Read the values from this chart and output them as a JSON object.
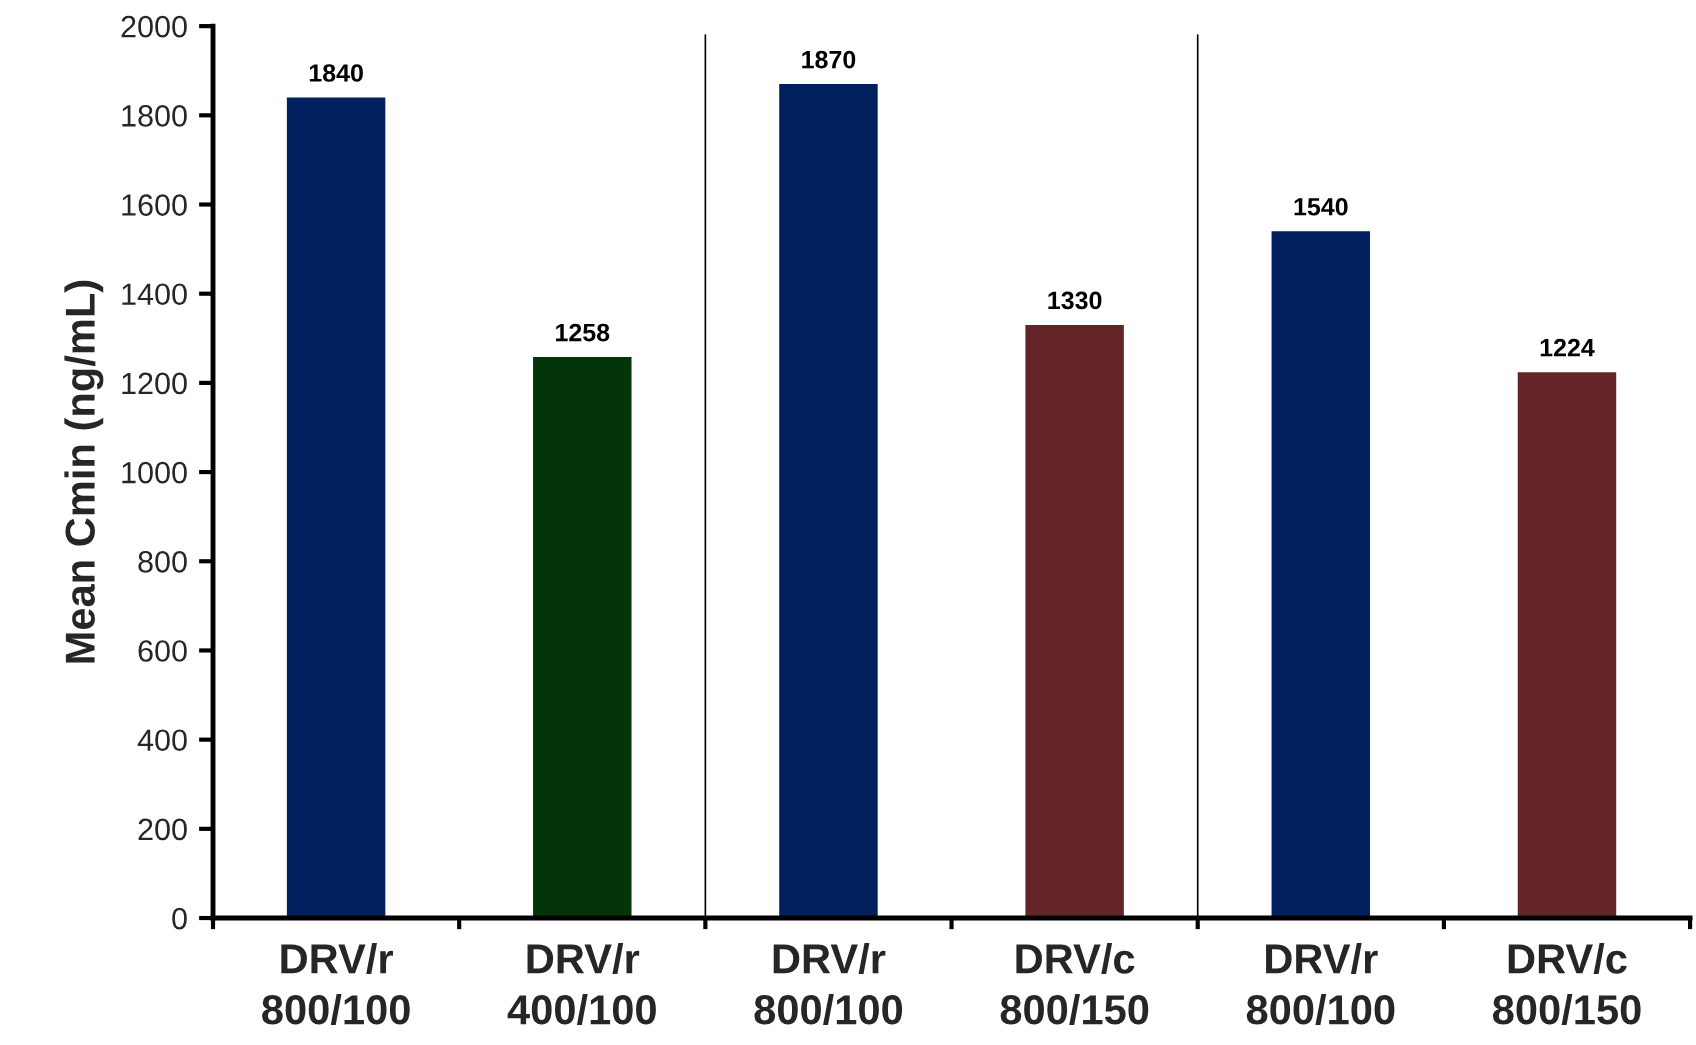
{
  "chart_data": {
    "type": "bar",
    "ylabel": "Mean Cmin (ng/mL)",
    "categories": [
      "DRV/r\n800/100",
      "DRV/r\n400/100",
      "DRV/r\n800/100",
      "DRV/c\n800/150",
      "DRV/r\n800/100",
      "DRV/c\n800/150"
    ],
    "values": [
      1840,
      1258,
      1870,
      1330,
      1540,
      1224
    ],
    "colors": [
      "#03205e",
      "#03340a",
      "#03205e",
      "#632528",
      "#03205e",
      "#632528"
    ],
    "ylim": [
      0,
      2000
    ],
    "yticks": [
      0,
      200,
      400,
      600,
      800,
      1000,
      1200,
      1400,
      1600,
      1800,
      2000
    ],
    "data_labels": true
  }
}
